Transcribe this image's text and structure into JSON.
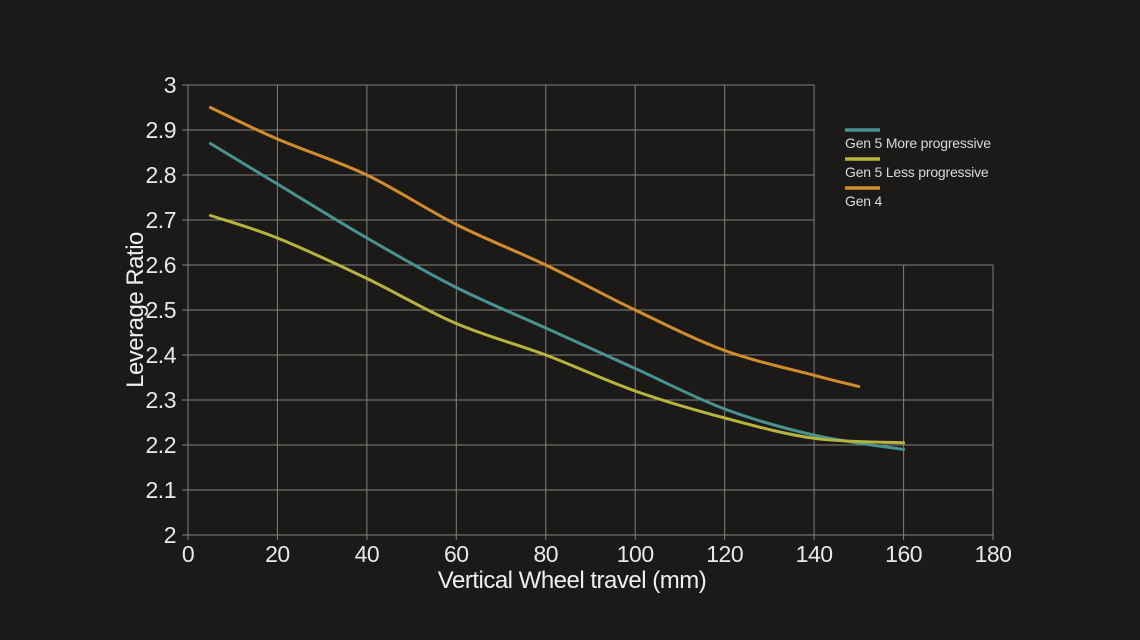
{
  "chart_data": {
    "type": "line",
    "title": "",
    "xlabel": "Vertical Wheel travel (mm)",
    "ylabel": "Leverage Ratio",
    "xlim": [
      0,
      180
    ],
    "ylim": [
      2,
      3
    ],
    "x_ticks": [
      0,
      20,
      40,
      60,
      80,
      100,
      120,
      140,
      160,
      180
    ],
    "y_ticks": [
      2,
      2.1,
      2.2,
      2.3,
      2.4,
      2.5,
      2.6,
      2.7,
      2.8,
      2.9,
      3
    ],
    "grid": "on",
    "grid_note": "grid is cut away in the top-right corner (x > 140 mm, y > 2.6) where the legend sits",
    "legend_position": "top-right inside plot cutout",
    "colors": {
      "background": "#1B1A18",
      "grid": "#82807C",
      "tick_text": "#E9E9E7",
      "axis_title_text": "#EFEFED",
      "legend_text": "#DADAD8"
    },
    "series": [
      {
        "name": "Gen 5 More progressive",
        "color": "#489290",
        "x": [
          5,
          20,
          40,
          60,
          80,
          100,
          120,
          140,
          160
        ],
        "y": [
          2.87,
          2.78,
          2.66,
          2.55,
          2.46,
          2.37,
          2.28,
          2.222,
          2.19
        ]
      },
      {
        "name": "Gen 5 Less progressive",
        "color": "#B7B33F",
        "x": [
          5,
          20,
          40,
          60,
          80,
          100,
          120,
          140,
          160
        ],
        "y": [
          2.71,
          2.66,
          2.57,
          2.47,
          2.4,
          2.32,
          2.26,
          2.215,
          2.205
        ]
      },
      {
        "name": "Gen 4",
        "color": "#D18C2E",
        "x": [
          5,
          20,
          40,
          60,
          80,
          100,
          120,
          140,
          150
        ],
        "y": [
          2.95,
          2.88,
          2.8,
          2.69,
          2.6,
          2.5,
          2.41,
          2.355,
          2.33
        ]
      }
    ]
  }
}
